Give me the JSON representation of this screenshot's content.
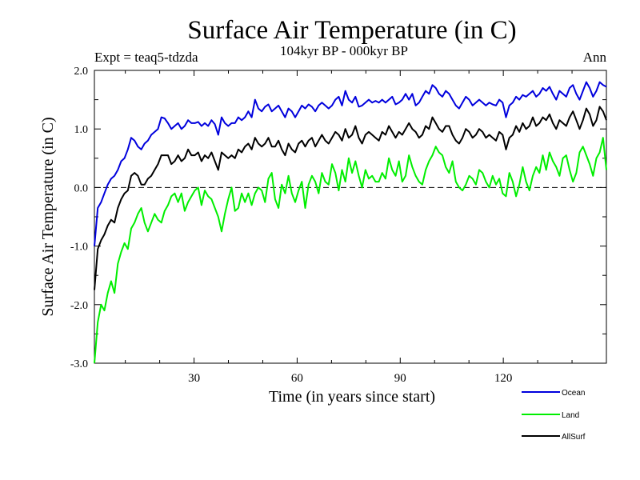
{
  "chart_data": {
    "type": "line",
    "title": "Surface Air Temperature (in C)",
    "subtitle": "104kyr BP - 000kyr BP",
    "experiment_label": "Expt = teaq5-tdzda",
    "season_label": "Ann",
    "xlabel": "Time (in years since start)",
    "ylabel": "Surface Air Temperature (in C)",
    "xlim": [
      1,
      150
    ],
    "ylim": [
      -3.0,
      2.0
    ],
    "xticks": [
      30,
      60,
      90,
      120
    ],
    "xtick_labels": [
      "30",
      "60",
      "90",
      "120"
    ],
    "yticks": [
      -3.0,
      -2.0,
      -1.0,
      0.0,
      1.0,
      2.0
    ],
    "ytick_labels": [
      "-3.0",
      "-2.0",
      "-1.0",
      "0.0",
      "1.0",
      "2.0"
    ],
    "zero_line": "dashed",
    "grid": false,
    "legend_position": "bottom-right",
    "series": [
      {
        "name": "Ocean",
        "color": "#0000dd",
        "values": [
          -1.0,
          -0.35,
          -0.25,
          -0.1,
          0.05,
          0.15,
          0.2,
          0.3,
          0.45,
          0.5,
          0.65,
          0.85,
          0.8,
          0.7,
          0.65,
          0.75,
          0.8,
          0.9,
          0.95,
          1.0,
          1.2,
          1.18,
          1.1,
          1.0,
          1.05,
          1.1,
          1.0,
          1.05,
          1.15,
          1.1,
          1.1,
          1.12,
          1.05,
          1.1,
          1.05,
          1.15,
          1.08,
          0.9,
          1.2,
          1.1,
          1.05,
          1.1,
          1.1,
          1.2,
          1.15,
          1.2,
          1.3,
          1.2,
          1.5,
          1.35,
          1.3,
          1.38,
          1.42,
          1.3,
          1.35,
          1.4,
          1.3,
          1.2,
          1.35,
          1.3,
          1.2,
          1.3,
          1.4,
          1.35,
          1.42,
          1.38,
          1.3,
          1.4,
          1.45,
          1.4,
          1.35,
          1.4,
          1.5,
          1.55,
          1.4,
          1.65,
          1.5,
          1.45,
          1.55,
          1.38,
          1.4,
          1.45,
          1.5,
          1.45,
          1.48,
          1.45,
          1.5,
          1.45,
          1.5,
          1.55,
          1.42,
          1.45,
          1.5,
          1.6,
          1.5,
          1.6,
          1.4,
          1.45,
          1.55,
          1.65,
          1.6,
          1.75,
          1.7,
          1.6,
          1.55,
          1.65,
          1.6,
          1.5,
          1.4,
          1.35,
          1.45,
          1.55,
          1.5,
          1.4,
          1.45,
          1.5,
          1.45,
          1.4,
          1.45,
          1.42,
          1.4,
          1.5,
          1.45,
          1.2,
          1.4,
          1.45,
          1.55,
          1.5,
          1.58,
          1.55,
          1.6,
          1.65,
          1.55,
          1.6,
          1.7,
          1.65,
          1.72,
          1.6,
          1.5,
          1.65,
          1.6,
          1.55,
          1.7,
          1.75,
          1.6,
          1.5,
          1.65,
          1.8,
          1.7,
          1.55,
          1.65,
          1.8,
          1.75,
          1.72
        ]
      },
      {
        "name": "Land",
        "color": "#00ee00",
        "values": [
          -3.0,
          -2.3,
          -2.0,
          -2.1,
          -1.8,
          -1.6,
          -1.8,
          -1.3,
          -1.1,
          -0.95,
          -1.05,
          -0.7,
          -0.6,
          -0.45,
          -0.35,
          -0.6,
          -0.75,
          -0.6,
          -0.45,
          -0.55,
          -0.6,
          -0.4,
          -0.3,
          -0.15,
          -0.1,
          -0.25,
          -0.1,
          -0.4,
          -0.25,
          -0.15,
          -0.05,
          0.0,
          -0.3,
          -0.05,
          -0.15,
          -0.2,
          -0.35,
          -0.5,
          -0.75,
          -0.45,
          -0.2,
          0.0,
          -0.4,
          -0.35,
          -0.1,
          -0.25,
          -0.1,
          -0.3,
          -0.1,
          0.0,
          -0.05,
          -0.25,
          0.15,
          0.25,
          -0.2,
          -0.35,
          0.05,
          -0.1,
          0.2,
          -0.1,
          -0.25,
          -0.05,
          0.1,
          -0.35,
          0.05,
          0.2,
          0.1,
          -0.1,
          0.25,
          0.1,
          0.05,
          0.4,
          0.25,
          -0.05,
          0.3,
          0.1,
          0.5,
          0.25,
          0.45,
          0.2,
          0.0,
          0.3,
          0.15,
          0.2,
          0.1,
          0.1,
          0.25,
          0.15,
          0.5,
          0.3,
          0.2,
          0.45,
          0.1,
          0.2,
          0.55,
          0.35,
          0.2,
          0.1,
          0.05,
          0.3,
          0.45,
          0.55,
          0.7,
          0.6,
          0.55,
          0.35,
          0.25,
          0.45,
          0.1,
          0.0,
          -0.05,
          0.05,
          0.2,
          0.15,
          0.05,
          0.3,
          0.25,
          0.1,
          0.0,
          0.2,
          0.05,
          0.15,
          -0.1,
          -0.15,
          0.25,
          0.1,
          -0.15,
          0.05,
          0.35,
          0.1,
          -0.05,
          0.2,
          0.35,
          0.25,
          0.55,
          0.3,
          0.6,
          0.45,
          0.35,
          0.2,
          0.5,
          0.55,
          0.3,
          0.1,
          0.25,
          0.6,
          0.7,
          0.55,
          0.4,
          0.2,
          0.5,
          0.6,
          0.85,
          0.3
        ]
      },
      {
        "name": "AllSurf",
        "color": "#000000",
        "values": [
          -1.75,
          -1.05,
          -0.9,
          -0.8,
          -0.65,
          -0.55,
          -0.6,
          -0.35,
          -0.2,
          -0.1,
          -0.05,
          0.2,
          0.25,
          0.2,
          0.05,
          0.05,
          0.15,
          0.2,
          0.3,
          0.4,
          0.55,
          0.55,
          0.55,
          0.4,
          0.45,
          0.55,
          0.45,
          0.5,
          0.65,
          0.55,
          0.55,
          0.6,
          0.45,
          0.55,
          0.5,
          0.6,
          0.45,
          0.3,
          0.6,
          0.55,
          0.5,
          0.55,
          0.5,
          0.65,
          0.6,
          0.7,
          0.75,
          0.65,
          0.85,
          0.75,
          0.7,
          0.75,
          0.85,
          0.7,
          0.7,
          0.8,
          0.65,
          0.55,
          0.75,
          0.65,
          0.6,
          0.75,
          0.8,
          0.7,
          0.8,
          0.85,
          0.7,
          0.8,
          0.9,
          0.8,
          0.75,
          0.85,
          0.95,
          0.9,
          0.8,
          1.0,
          0.85,
          0.9,
          1.05,
          0.85,
          0.75,
          0.9,
          0.95,
          0.9,
          0.85,
          0.8,
          0.95,
          0.9,
          1.05,
          0.95,
          0.85,
          0.95,
          0.9,
          1.0,
          1.1,
          1.0,
          0.95,
          0.85,
          0.9,
          1.05,
          1.0,
          1.2,
          1.1,
          1.0,
          0.95,
          1.05,
          1.05,
          0.9,
          0.8,
          0.75,
          0.85,
          1.0,
          0.95,
          0.85,
          0.9,
          1.0,
          0.95,
          0.85,
          0.9,
          0.85,
          0.8,
          0.95,
          0.9,
          0.65,
          0.85,
          0.9,
          1.05,
          0.95,
          1.1,
          1.0,
          1.05,
          1.2,
          1.05,
          1.1,
          1.2,
          1.15,
          1.25,
          1.1,
          1.0,
          1.15,
          1.1,
          1.05,
          1.2,
          1.3,
          1.15,
          1.0,
          1.15,
          1.35,
          1.25,
          1.05,
          1.15,
          1.38,
          1.3,
          1.15
        ]
      }
    ]
  }
}
